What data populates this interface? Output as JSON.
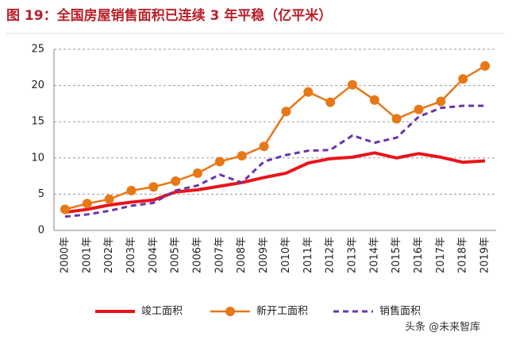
{
  "chart_data": {
    "type": "line",
    "title": "图 19：全国房屋销售面积已连续 3 年平稳（亿平米）",
    "watermark": "头条 @未来智库",
    "categories": [
      "2000年",
      "2001年",
      "2002年",
      "2003年",
      "2004年",
      "2005年",
      "2006年",
      "2007年",
      "2008年",
      "2009年",
      "2010年",
      "2011年",
      "2012年",
      "2013年",
      "2014年",
      "2015年",
      "2016年",
      "2017年",
      "2018年",
      "2019年"
    ],
    "series": [
      {
        "name": "竣工面积",
        "color": "#e8141b",
        "marker": "none",
        "dashed": false,
        "values": [
          2.5,
          2.9,
          3.5,
          3.9,
          4.2,
          5.3,
          5.6,
          6.1,
          6.6,
          7.3,
          7.9,
          9.3,
          9.9,
          10.1,
          10.7,
          10.0,
          10.6,
          10.1,
          9.4,
          9.6
        ]
      },
      {
        "name": "新开工面积",
        "color": "#e77817",
        "marker": "circle",
        "dashed": false,
        "values": [
          2.9,
          3.7,
          4.3,
          5.5,
          6.0,
          6.8,
          7.9,
          9.5,
          10.3,
          11.6,
          16.4,
          19.1,
          17.7,
          20.1,
          18.0,
          15.4,
          16.7,
          17.8,
          20.9,
          22.7
        ]
      },
      {
        "name": "销售面积",
        "color": "#6a35a8",
        "marker": "none",
        "dashed": true,
        "values": [
          1.9,
          2.2,
          2.7,
          3.4,
          3.8,
          5.5,
          6.2,
          7.7,
          6.6,
          9.5,
          10.4,
          11.0,
          11.1,
          13.1,
          12.1,
          12.8,
          15.7,
          16.9,
          17.2,
          17.2
        ]
      }
    ],
    "ylim": [
      0,
      25
    ],
    "yticks": [
      0,
      5,
      10,
      15,
      20,
      25
    ],
    "grid": true,
    "legend": "bottom"
  }
}
